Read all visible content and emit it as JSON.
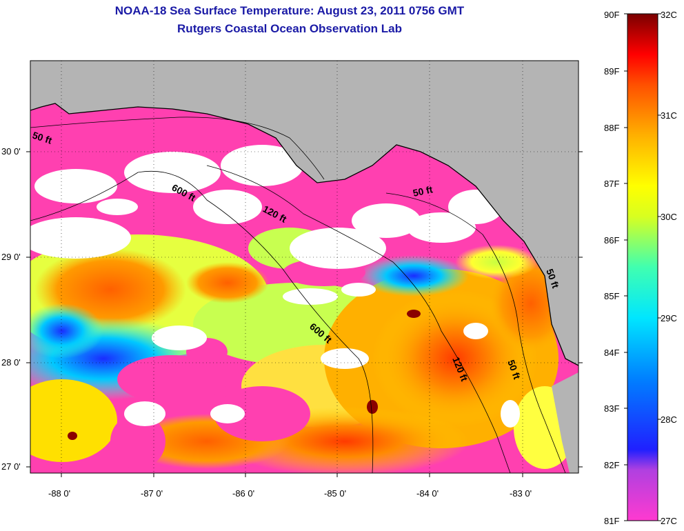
{
  "header": {
    "title": "NOAA-18 Sea Surface Temperature:  August 23, 2011 0756 GMT",
    "subtitle": "Rutgers Coastal Ocean Observation Lab"
  },
  "axes": {
    "lat_labels": [
      "30 0'",
      "29 0'",
      "28 0'",
      "27 0'"
    ],
    "lon_labels": [
      "-88 0'",
      "-87 0'",
      "-86 0'",
      "-85 0'",
      "-84 0'",
      "-83 0'"
    ],
    "lat_range": [
      26.98,
      30.85
    ],
    "lon_range": [
      -88.32,
      -82.45
    ]
  },
  "contours": {
    "labels": [
      "50 ft",
      "600 ft",
      "120 ft",
      "50 ft",
      "50 ft",
      "600 ft",
      "120 ft",
      "50 ft"
    ]
  },
  "colorbar": {
    "fahrenheit": [
      "90F",
      "89F",
      "88F",
      "87F",
      "86F",
      "85F",
      "84F",
      "83F",
      "82F",
      "81F"
    ],
    "celsius": [
      "32C",
      "31C",
      "30C",
      "29C",
      "28C",
      "27C"
    ]
  },
  "colors": {
    "land": "#b4b4b4",
    "cloud": "#ffffff",
    "title": "#1a1aa6",
    "cold": "#ff40b0",
    "warm": "#ff3300",
    "hot": "#7a0000"
  }
}
